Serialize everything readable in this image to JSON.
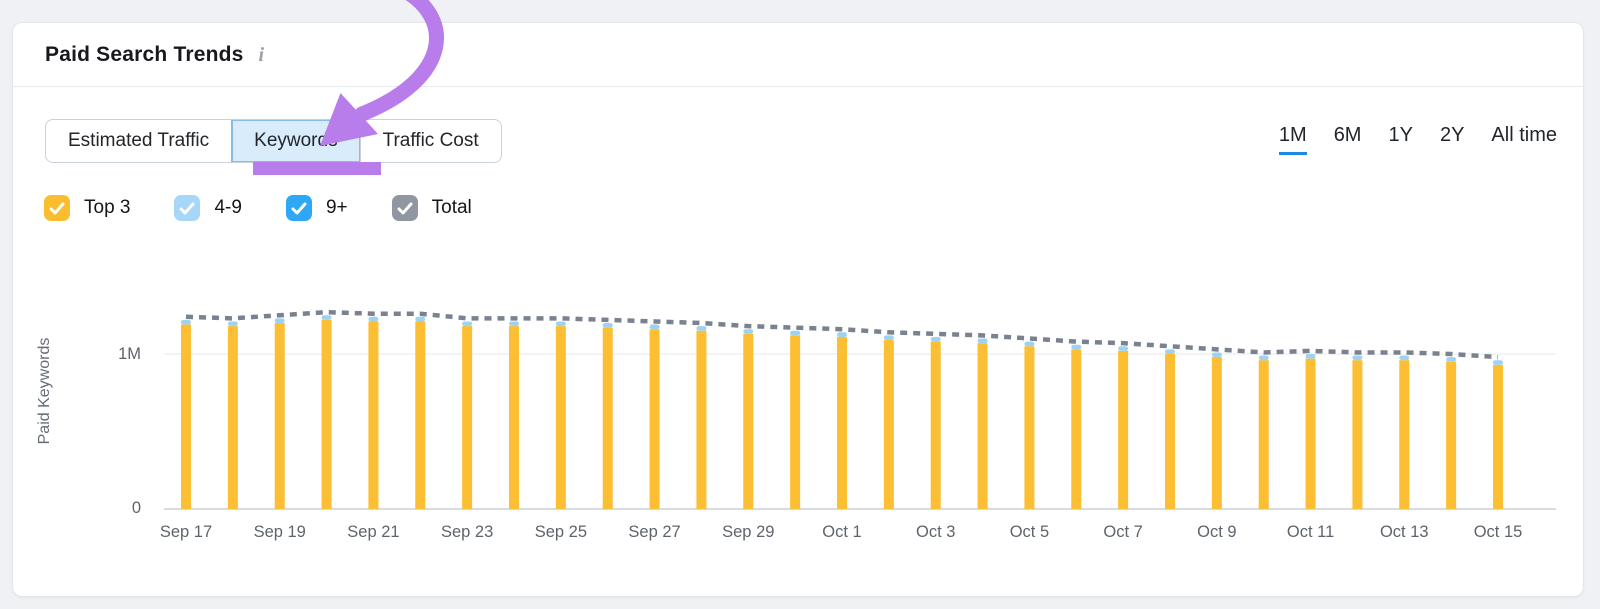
{
  "card": {
    "title": "Paid Search Trends",
    "info_icon": "i"
  },
  "tabs": {
    "items": [
      {
        "label": "Estimated Traffic",
        "active": false
      },
      {
        "label": "Keywords",
        "active": true
      },
      {
        "label": "Traffic Cost",
        "active": false
      }
    ],
    "active_bg": "#D9ECFC",
    "active_border": "#85BCE9"
  },
  "time_ranges": {
    "items": [
      {
        "label": "1M",
        "active": true
      },
      {
        "label": "6M",
        "active": false
      },
      {
        "label": "1Y",
        "active": false
      },
      {
        "label": "2Y",
        "active": false
      },
      {
        "label": "All time",
        "active": false
      }
    ],
    "active_underline_color": "#1C89E2"
  },
  "legend": {
    "items": [
      {
        "label": "Top 3",
        "color": "#FBBD30",
        "checked": true
      },
      {
        "label": "4-9",
        "color": "#A6D6F8",
        "checked": true
      },
      {
        "label": "9+",
        "color": "#2EA7F4",
        "checked": true
      },
      {
        "label": "Total",
        "color": "#9097A2",
        "checked": true
      }
    ]
  },
  "annotation": {
    "type": "arrow-pointing-at-keywords-tab",
    "color": "#B97CEB"
  },
  "chart_data": {
    "type": "bar",
    "stacked": true,
    "title": "Paid Search Trends — Keywords",
    "xlabel": "",
    "ylabel": "Paid Keywords",
    "ylim_millions": [
      0,
      1.45
    ],
    "grid": "horizontal line at 1M only",
    "legend_position": "top-left (checkbox toggles)",
    "yticks": [
      {
        "label": "1M",
        "value_millions": 1.0
      },
      {
        "label": "0",
        "value_millions": 0.0
      }
    ],
    "categories": [
      "Sep 17",
      "Sep 18",
      "Sep 19",
      "Sep 20",
      "Sep 21",
      "Sep 22",
      "Sep 23",
      "Sep 24",
      "Sep 25",
      "Sep 26",
      "Sep 27",
      "Sep 28",
      "Sep 29",
      "Sep 30",
      "Oct 1",
      "Oct 2",
      "Oct 3",
      "Oct 4",
      "Oct 5",
      "Oct 6",
      "Oct 7",
      "Oct 8",
      "Oct 9",
      "Oct 10",
      "Oct 11",
      "Oct 12",
      "Oct 13",
      "Oct 14",
      "Oct 15"
    ],
    "x_tick_labels": [
      "Sep 17",
      "Sep 19",
      "Sep 21",
      "Sep 23",
      "Sep 25",
      "Sep 27",
      "Sep 29",
      "Oct 1",
      "Oct 3",
      "Oct 5",
      "Oct 7",
      "Oct 9",
      "Oct 11",
      "Oct 13",
      "Oct 15"
    ],
    "series": [
      {
        "name": "Top 3",
        "color": "#FCBE33",
        "values_millions": [
          1.19,
          1.18,
          1.2,
          1.22,
          1.21,
          1.21,
          1.18,
          1.18,
          1.18,
          1.17,
          1.16,
          1.15,
          1.13,
          1.12,
          1.11,
          1.09,
          1.08,
          1.07,
          1.05,
          1.03,
          1.02,
          1.0,
          0.98,
          0.96,
          0.97,
          0.96,
          0.96,
          0.95,
          0.93
        ]
      },
      {
        "name": "4-9",
        "color": "#9ED2F2",
        "values_millions": [
          0.03,
          0.03,
          0.03,
          0.03,
          0.03,
          0.03,
          0.03,
          0.03,
          0.03,
          0.03,
          0.03,
          0.03,
          0.03,
          0.03,
          0.03,
          0.03,
          0.03,
          0.03,
          0.03,
          0.03,
          0.03,
          0.03,
          0.03,
          0.03,
          0.03,
          0.03,
          0.03,
          0.03,
          0.03
        ]
      },
      {
        "name": "9+",
        "color": "#2EA7F4",
        "values_millions": [
          0,
          0,
          0,
          0,
          0,
          0,
          0,
          0,
          0,
          0,
          0,
          0,
          0,
          0,
          0,
          0,
          0,
          0,
          0,
          0,
          0,
          0,
          0,
          0,
          0,
          0,
          0,
          0,
          0
        ],
        "note": "checked in legend but not visually distinguishable in bars"
      }
    ],
    "line": {
      "name": "Total",
      "style": "dashed",
      "color": "#7A8290",
      "values_millions": [
        1.24,
        1.23,
        1.25,
        1.27,
        1.26,
        1.26,
        1.23,
        1.23,
        1.23,
        1.22,
        1.21,
        1.2,
        1.18,
        1.17,
        1.16,
        1.14,
        1.13,
        1.12,
        1.1,
        1.08,
        1.07,
        1.05,
        1.03,
        1.01,
        1.02,
        1.01,
        1.01,
        1.0,
        0.98
      ]
    },
    "axis_colors": {
      "tick_text": "#5E646C",
      "gridline": "#E8EAED",
      "baseline": "#D8DBE0"
    }
  }
}
